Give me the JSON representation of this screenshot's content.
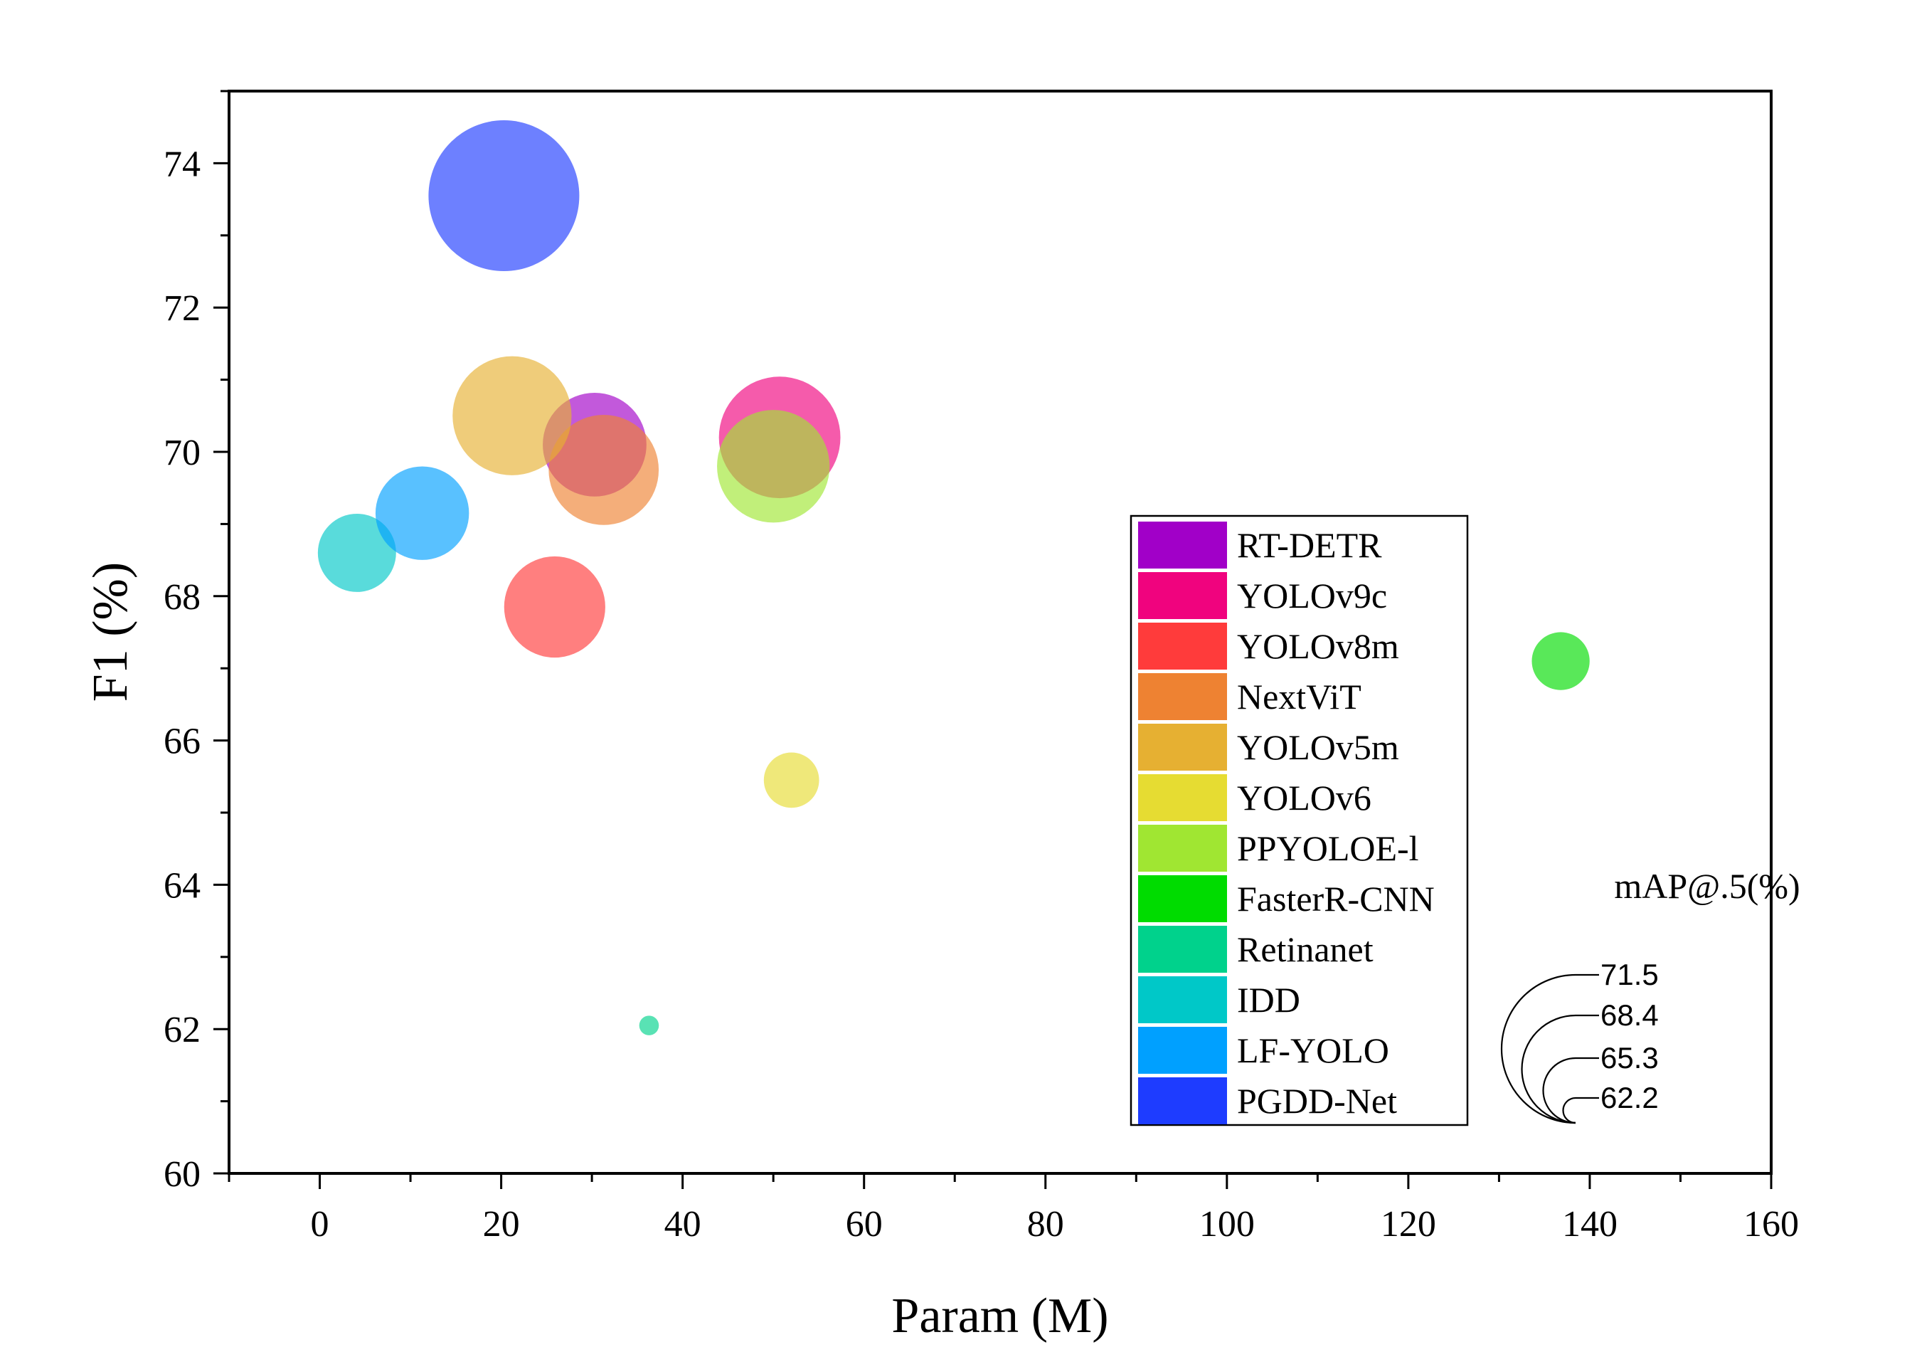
{
  "chart_data": {
    "type": "scatter",
    "xlabel": "Param (M)",
    "ylabel": "F1 (%)",
    "xlim": [
      -10,
      160
    ],
    "ylim": [
      60,
      75
    ],
    "xticks": [
      0,
      20,
      40,
      60,
      80,
      100,
      120,
      140,
      160
    ],
    "yticks": [
      60,
      62,
      64,
      66,
      68,
      70,
      72,
      74
    ],
    "grid": false,
    "legend_position": "right",
    "size_legend": {
      "title": "mAP@.5(%)",
      "values": [
        71.5,
        68.4,
        65.3,
        62.2
      ]
    },
    "series": [
      {
        "name": "RT-DETR",
        "color": "#A100C8",
        "x": 30.3,
        "y": 70.1,
        "size": 67.8
      },
      {
        "name": "YOLOv9c",
        "color": "#F0037E",
        "x": 50.7,
        "y": 70.2,
        "size": 69.2
      },
      {
        "name": "YOLOv8m",
        "color": "#FF3B3B",
        "x": 25.9,
        "y": 67.85,
        "size": 67.6
      },
      {
        "name": "NextViT",
        "color": "#EE8232",
        "x": 31.3,
        "y": 69.75,
        "size": 68.3
      },
      {
        "name": "YOLOv5m",
        "color": "#E6B032",
        "x": 21.2,
        "y": 70.5,
        "size": 69.0
      },
      {
        "name": "YOLOv6",
        "color": "#E6DC32",
        "x": 52.0,
        "y": 65.45,
        "size": 64.0
      },
      {
        "name": "PPYOLOE-l",
        "color": "#A0E632",
        "x": 50.0,
        "y": 69.8,
        "size": 68.5
      },
      {
        "name": "FasterR-CNN",
        "color": "#00DC00",
        "x": 136.8,
        "y": 67.1,
        "size": 64.2
      },
      {
        "name": "Retinanet",
        "color": "#00D28C",
        "x": 36.3,
        "y": 62.05,
        "size": 61.2
      },
      {
        "name": "IDD",
        "color": "#00C8C8",
        "x": 4.1,
        "y": 68.6,
        "size": 65.8
      },
      {
        "name": "LF-YOLO",
        "color": "#00A0FF",
        "x": 11.3,
        "y": 69.15,
        "size": 67.0
      },
      {
        "name": "PGDD-Net",
        "color": "#1E3CFF",
        "x": 20.3,
        "y": 73.55,
        "size": 71.5
      }
    ]
  }
}
